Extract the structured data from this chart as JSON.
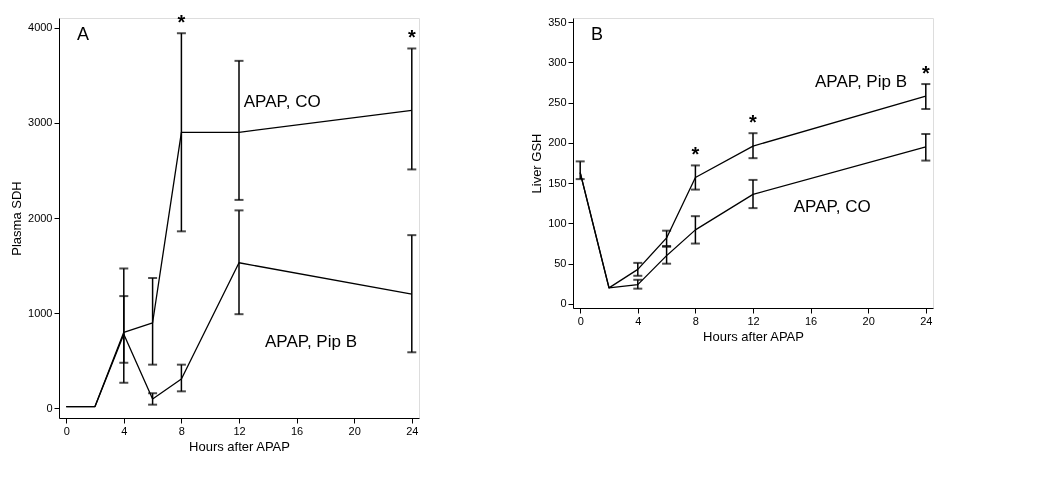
{
  "chart_data": [
    {
      "type": "line",
      "title": "A",
      "xlabel": "Hours after APAP",
      "ylabel": "Plasma SDH",
      "x": [
        0,
        2,
        4,
        6,
        8,
        12,
        24
      ],
      "xlim": [
        -0.5,
        24.5
      ],
      "xticks": [
        0,
        4,
        8,
        12,
        16,
        20,
        24
      ],
      "ylim": [
        -100,
        4100
      ],
      "yticks": [
        0,
        1000,
        2000,
        3000,
        4000
      ],
      "grid": false,
      "legend": false,
      "marker": "none",
      "line_style": "solid",
      "series": [
        {
          "name": "APAP, CO",
          "color": "#000000",
          "values": [
            20,
            20,
            800,
            900,
            2900,
            2900,
            3130
          ],
          "errors": [
            null,
            null,
            [
              480,
              1180
            ],
            [
              460,
              1370
            ],
            [
              1860,
              3940
            ],
            [
              2190,
              3650
            ],
            [
              2510,
              3780
            ]
          ]
        },
        {
          "name": "APAP, Pip B",
          "color": "#000000",
          "values": [
            20,
            20,
            780,
            100,
            310,
            1530,
            1200
          ],
          "errors": [
            null,
            null,
            [
              270,
              1470
            ],
            [
              40,
              160
            ],
            [
              180,
              460
            ],
            [
              990,
              2080
            ],
            [
              590,
              1820
            ]
          ]
        }
      ],
      "annotations": [
        {
          "text": "*",
          "x": 8,
          "y": 3940
        },
        {
          "text": "*",
          "x": 24,
          "y": 3780
        }
      ]
    },
    {
      "type": "line",
      "title": "B",
      "xlabel": "Hours after APAP",
      "ylabel": "Liver GSH",
      "x": [
        0,
        2,
        4,
        6,
        8,
        12,
        24
      ],
      "xlim": [
        -0.5,
        24.5
      ],
      "xticks": [
        0,
        4,
        8,
        12,
        16,
        20,
        24
      ],
      "ylim": [
        -5,
        355
      ],
      "yticks": [
        0,
        50,
        100,
        150,
        200,
        250,
        300,
        350
      ],
      "grid": false,
      "legend": false,
      "marker": "none",
      "line_style": "solid",
      "series": [
        {
          "name": "APAP, Pip B",
          "color": "#000000",
          "values": [
            163,
            20,
            43,
            82,
            157,
            196,
            258
          ],
          "errors": [
            [
              155,
              177
            ],
            null,
            [
              35,
              51
            ],
            [
              72,
              91
            ],
            [
              142,
              172
            ],
            [
              181,
              212
            ],
            [
              242,
              273
            ]
          ]
        },
        {
          "name": "APAP, CO",
          "color": "#000000",
          "values": [
            163,
            20,
            24,
            60,
            92,
            136,
            195
          ],
          "errors": [
            null,
            null,
            [
              19,
              30
            ],
            [
              50,
              71
            ],
            [
              75,
              109
            ],
            [
              119,
              154
            ],
            [
              178,
              211
            ]
          ]
        }
      ],
      "annotations": [
        {
          "text": "*",
          "x": 8,
          "y": 172
        },
        {
          "text": "*",
          "x": 12,
          "y": 212
        },
        {
          "text": "*",
          "x": 24,
          "y": 273
        }
      ]
    }
  ]
}
